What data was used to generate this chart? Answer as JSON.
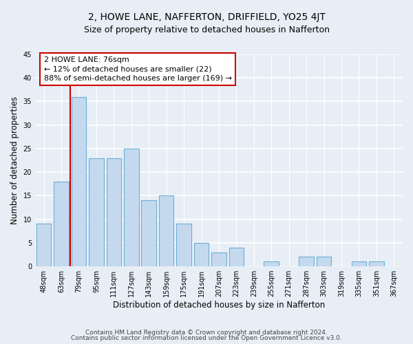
{
  "title": "2, HOWE LANE, NAFFERTON, DRIFFIELD, YO25 4JT",
  "subtitle": "Size of property relative to detached houses in Nafferton",
  "xlabel": "Distribution of detached houses by size in Nafferton",
  "ylabel": "Number of detached properties",
  "categories": [
    "48sqm",
    "63sqm",
    "79sqm",
    "95sqm",
    "111sqm",
    "127sqm",
    "143sqm",
    "159sqm",
    "175sqm",
    "191sqm",
    "207sqm",
    "223sqm",
    "239sqm",
    "255sqm",
    "271sqm",
    "287sqm",
    "303sqm",
    "319sqm",
    "335sqm",
    "351sqm",
    "367sqm"
  ],
  "values": [
    9,
    18,
    36,
    23,
    23,
    25,
    14,
    15,
    9,
    5,
    3,
    4,
    0,
    1,
    0,
    2,
    2,
    0,
    1,
    1,
    0
  ],
  "bar_color": "#c5d9ee",
  "bar_edge_color": "#6aaed6",
  "annotation_text": "2 HOWE LANE: 76sqm\n← 12% of detached houses are smaller (22)\n88% of semi-detached houses are larger (169) →",
  "annotation_box_color": "#ffffff",
  "annotation_box_edge": "#cc0000",
  "highlight_line_color": "#cc0000",
  "ylim": [
    0,
    45
  ],
  "yticks": [
    0,
    5,
    10,
    15,
    20,
    25,
    30,
    35,
    40,
    45
  ],
  "bg_color": "#e8eef5",
  "plot_bg_color": "#e8eef5",
  "grid_color": "#ffffff",
  "footer_line1": "Contains HM Land Registry data © Crown copyright and database right 2024.",
  "footer_line2": "Contains public sector information licensed under the Open Government Licence v3.0.",
  "title_fontsize": 10,
  "subtitle_fontsize": 9,
  "axis_label_fontsize": 8.5,
  "tick_fontsize": 7,
  "annotation_fontsize": 8,
  "footer_fontsize": 6.5
}
